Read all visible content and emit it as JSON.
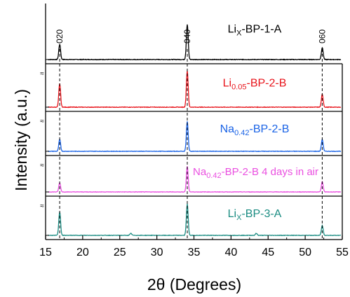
{
  "chart_data": {
    "type": "line",
    "title": "",
    "xlabel": "2θ (Degrees)",
    "ylabel": "Intensity (a.u.)",
    "xlim": [
      15,
      55
    ],
    "x_ticks": [
      15,
      20,
      25,
      30,
      35,
      40,
      45,
      50,
      55
    ],
    "x_tick_labels": [
      "15",
      "20",
      "25",
      "30",
      "35",
      "40",
      "45",
      "50",
      "55"
    ],
    "y_ticks": false,
    "grid": false,
    "stacked_offset": true,
    "axis_break_symbol": "≈",
    "reference_lines": [
      {
        "x": 16.9,
        "label": "020"
      },
      {
        "x": 34.1,
        "label": "040"
      },
      {
        "x": 52.3,
        "label": "060"
      }
    ],
    "series": [
      {
        "label_main": "Li",
        "label_sub": "X",
        "label_rest": "-BP-1-A",
        "color": "#000000",
        "peaks": [
          {
            "x": 16.9,
            "rel_height": 0.28
          },
          {
            "x": 34.1,
            "rel_height": 0.65
          },
          {
            "x": 52.3,
            "rel_height": 0.22
          }
        ]
      },
      {
        "label_main": "Li",
        "label_sub": "0.05",
        "label_rest": "-BP-2-B",
        "color": "#e8141b",
        "peaks": [
          {
            "x": 16.9,
            "rel_height": 0.55
          },
          {
            "x": 34.1,
            "rel_height": 0.85
          },
          {
            "x": 52.3,
            "rel_height": 0.3
          }
        ]
      },
      {
        "label_main": "Na",
        "label_sub": "0.42",
        "label_rest": "-BP-2-B",
        "color": "#1a63e6",
        "peaks": [
          {
            "x": 16.9,
            "rel_height": 0.3
          },
          {
            "x": 34.1,
            "rel_height": 0.75
          },
          {
            "x": 52.3,
            "rel_height": 0.3
          }
        ]
      },
      {
        "label_main": "Na",
        "label_sub": "0.42",
        "label_rest": "-BP-2-B 4 days in air",
        "color": "#ea4fe0",
        "peaks": [
          {
            "x": 16.9,
            "rel_height": 0.25
          },
          {
            "x": 34.1,
            "rel_height": 0.7
          },
          {
            "x": 52.3,
            "rel_height": 0.28
          }
        ]
      },
      {
        "label_main": "Li",
        "label_sub": "X",
        "label_rest": "-BP-3-A",
        "color": "#1a8c82",
        "peaks": [
          {
            "x": 16.9,
            "rel_height": 0.6
          },
          {
            "x": 34.1,
            "rel_height": 0.8
          },
          {
            "x": 52.3,
            "rel_height": 0.25
          },
          {
            "x": 26.5,
            "rel_height": 0.05
          },
          {
            "x": 43.4,
            "rel_height": 0.05
          }
        ]
      }
    ]
  }
}
